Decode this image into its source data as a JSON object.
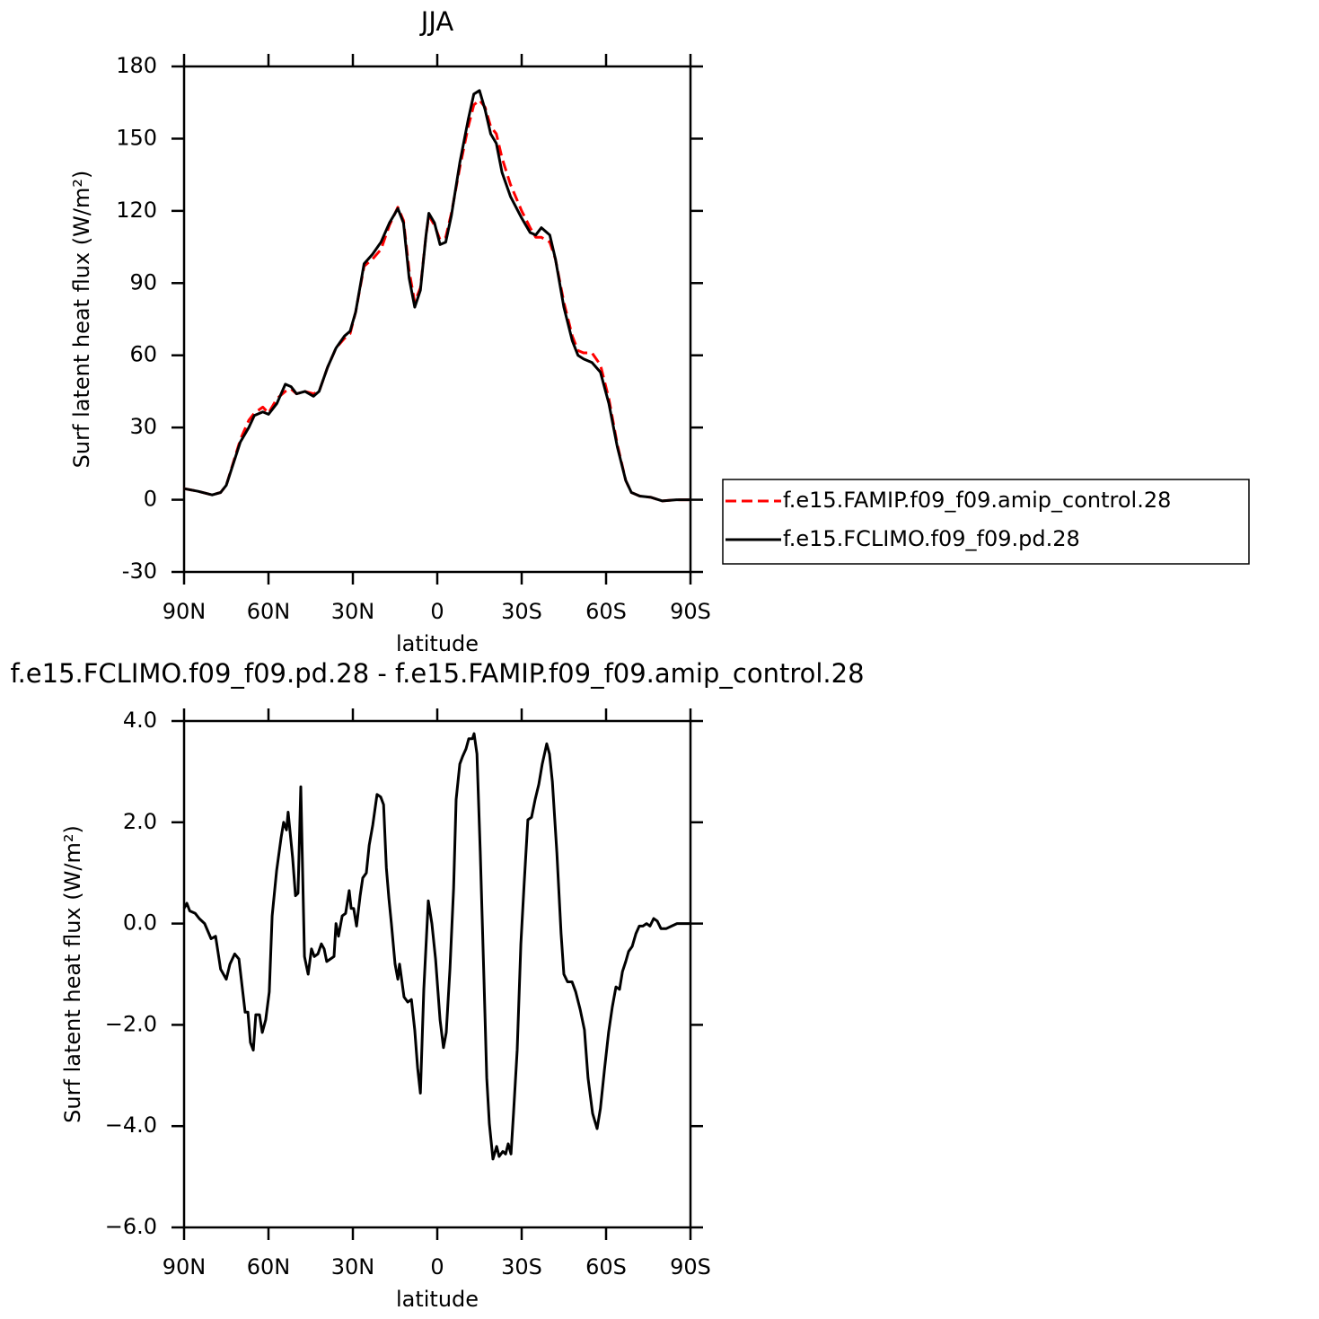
{
  "chart_data": [
    {
      "type": "line",
      "title": "JJA",
      "xlabel": "latitude",
      "ylabel": "Surf latent heat flux (W/m²)",
      "x": [
        90,
        85,
        80,
        77,
        75,
        70,
        67,
        65,
        62,
        60,
        57,
        54,
        52,
        50,
        47,
        44,
        42,
        39,
        36,
        33,
        31,
        29,
        26,
        23,
        20,
        17,
        14,
        12,
        10,
        8,
        6,
        4,
        3,
        1,
        -1,
        -3,
        -5,
        -8,
        -11,
        -13,
        -15,
        -17,
        -19,
        -21,
        -23,
        -26,
        -30,
        -33,
        -35,
        -37,
        -40,
        -42,
        -45,
        -48,
        -50,
        -52,
        -55,
        -58,
        -61,
        -64,
        -67,
        -69,
        -72,
        -76,
        -80,
        -85,
        -90
      ],
      "series": [
        {
          "name": "f.e15.FAMIP.f09_f09.amip_control.28",
          "color": "#ff0000",
          "linestyle": "dashed",
          "values": [
            4.6,
            3.5,
            2,
            3,
            6,
            25,
            33,
            36,
            38.5,
            36,
            42,
            45,
            46,
            44,
            45,
            44,
            45,
            55,
            63,
            67,
            69,
            78,
            97,
            100,
            104,
            114,
            121.5,
            116,
            95,
            82,
            88,
            110,
            118,
            114,
            108,
            109,
            119,
            138,
            155,
            164,
            166,
            163,
            155,
            152,
            142,
            131,
            120,
            113,
            109,
            109,
            107,
            100,
            82,
            68,
            62,
            61,
            61,
            56,
            42,
            23,
            8,
            3,
            1.5,
            1,
            -0.5,
            0,
            0
          ]
        },
        {
          "name": "f.e15.FCLIMO.f09_f09.pd.28",
          "color": "#000000",
          "linestyle": "solid",
          "values": [
            4.6,
            3.5,
            2,
            3,
            6,
            24,
            30,
            35,
            36.5,
            35.5,
            40,
            48,
            47,
            44,
            45,
            43,
            45,
            55,
            63,
            68,
            70,
            78,
            98,
            102,
            107,
            115,
            121,
            115,
            92,
            80,
            87,
            110,
            119,
            115,
            106,
            107,
            118,
            140,
            158,
            168.5,
            170,
            162,
            152,
            148,
            136,
            126,
            117,
            111,
            110,
            113,
            110,
            100,
            80,
            66,
            60,
            58.5,
            57,
            53,
            40,
            22,
            8,
            3,
            1.5,
            1,
            -0.5,
            0,
            0
          ]
        }
      ],
      "xlim": [
        90,
        -90
      ],
      "xticks": [
        {
          "value": 90,
          "label": "90N"
        },
        {
          "value": 60,
          "label": "60N"
        },
        {
          "value": 30,
          "label": "30N"
        },
        0,
        {
          "value": -30,
          "label": "30S"
        },
        {
          "value": -60,
          "label": "60S"
        },
        {
          "value": -90,
          "label": "90S"
        }
      ],
      "ylim": [
        -30,
        180
      ],
      "yticks": [
        -30,
        0,
        30,
        60,
        90,
        120,
        150,
        180
      ],
      "legend": "outside-right"
    },
    {
      "type": "line",
      "title": "f.e15.FCLIMO.f09_f09.pd.28 - f.e15.FAMIP.f09_f09.amip_control.28",
      "xlabel": "latitude",
      "ylabel": "Surf latent heat flux (W/m²)",
      "x": [
        90,
        89,
        88,
        86,
        84.6,
        82.7,
        80.4,
        78.8,
        77,
        75,
        73.7,
        72,
        70.5,
        68.3,
        67.3,
        66.4,
        65.4,
        64.5,
        63.2,
        62.2,
        61,
        59.7,
        58.7,
        57.1,
        55.5,
        54.6,
        53.6,
        53,
        51.4,
        50.4,
        49.5,
        48.5,
        47.2,
        45.9,
        44.7,
        43.7,
        42.4,
        41.2,
        40.2,
        39.3,
        38,
        36.7,
        36,
        35.1,
        33.8,
        32.6,
        31.3,
        30.6,
        29.7,
        28.7,
        27.4,
        26.5,
        25.2,
        24.2,
        22.9,
        21.4,
        20.1,
        19.1,
        18.1,
        17.2,
        16.3,
        15,
        14,
        13.4,
        11.8,
        10.5,
        9.2,
        8,
        7,
        6,
        4.8,
        3.2,
        1.9,
        0.6,
        -1,
        -2.2,
        -3.2,
        -4.5,
        -5.8,
        -6.7,
        -8,
        -9,
        -10.2,
        -11.2,
        -12.5,
        -13.1,
        -14.1,
        -15.3,
        -16.6,
        -17.6,
        -18.5,
        -19.8,
        -21.1,
        -22,
        -23.3,
        -24.3,
        -25.2,
        -26.2,
        -27.1,
        -28.4,
        -29.7,
        -30.9,
        -32.2,
        -33.5,
        -34.8,
        -36.1,
        -37.3,
        -38.9,
        -39.9,
        -40.9,
        -42.5,
        -44,
        -45,
        -46.3,
        -47.9,
        -49.2,
        -50.8,
        -52.3,
        -53.6,
        -55.2,
        -56.8,
        -58,
        -59.4,
        -60.9,
        -62.2,
        -63.5,
        -64.8,
        -65.8,
        -67,
        -68,
        -69.3,
        -70.6,
        -71.8,
        -73.1,
        -74.4,
        -75.6,
        -76.9,
        -78.2,
        -79.5,
        -81.4,
        -83.3,
        -85.2,
        -87.8,
        -90
      ],
      "series": [
        {
          "color": "#000000",
          "linestyle": "solid",
          "values": [
            0.3,
            0.4,
            0.25,
            0.2,
            0.1,
            0,
            -0.3,
            -0.25,
            -0.9,
            -1.1,
            -0.8,
            -0.6,
            -0.7,
            -1.75,
            -1.75,
            -2.35,
            -2.5,
            -1.8,
            -1.8,
            -2.15,
            -1.9,
            -1.35,
            0.15,
            1.05,
            1.7,
            2,
            1.85,
            2.2,
            1.3,
            0.55,
            0.6,
            2.7,
            -0.65,
            -1,
            -0.5,
            -0.65,
            -0.6,
            -0.4,
            -0.5,
            -0.75,
            -0.7,
            -0.65,
            0,
            -0.25,
            0.15,
            0.2,
            0.65,
            0.3,
            0.3,
            -0.05,
            0.55,
            0.9,
            1,
            1.55,
            1.95,
            2.55,
            2.5,
            2.35,
            1.1,
            0.5,
            0,
            -0.8,
            -1.1,
            -0.8,
            -1.45,
            -1.55,
            -1.5,
            -2.1,
            -2.85,
            -3.35,
            -1.3,
            0.45,
            0,
            -0.7,
            -1.9,
            -2.45,
            -2.15,
            -0.9,
            0.7,
            2.45,
            3.15,
            3.3,
            3.45,
            3.65,
            3.65,
            3.75,
            3.35,
            1.4,
            -1.1,
            -3.05,
            -3.95,
            -4.65,
            -4.4,
            -4.6,
            -4.5,
            -4.55,
            -4.35,
            -4.55,
            -3.75,
            -2.5,
            -0.4,
            0.8,
            2.05,
            2.1,
            2.45,
            2.75,
            3.15,
            3.55,
            3.35,
            2.8,
            1.4,
            -0.2,
            -1,
            -1.15,
            -1.15,
            -1.35,
            -1.7,
            -2.1,
            -3.05,
            -3.75,
            -4.05,
            -3.65,
            -2.9,
            -2.15,
            -1.65,
            -1.25,
            -1.3,
            -0.95,
            -0.75,
            -0.55,
            -0.45,
            -0.2,
            -0.05,
            -0.05,
            0,
            -0.05,
            0.1,
            0.05,
            -0.1,
            -0.1,
            -0.05,
            0,
            0,
            0
          ]
        }
      ],
      "xlim": [
        90,
        -90
      ],
      "xticks": [
        {
          "value": 90,
          "label": "90N"
        },
        {
          "value": 60,
          "label": "60N"
        },
        {
          "value": 30,
          "label": "30N"
        },
        0,
        {
          "value": -30,
          "label": "30S"
        },
        {
          "value": -60,
          "label": "60S"
        },
        {
          "value": -90,
          "label": "90S"
        }
      ],
      "ylim": [
        -6,
        4
      ],
      "yticks": [
        {
          "value": -6,
          "label": "−6.0"
        },
        {
          "value": -4,
          "label": "−4.0"
        },
        {
          "value": -2,
          "label": "−2.0"
        },
        {
          "value": 0,
          "label": "0.0"
        },
        {
          "value": 2,
          "label": "2.0"
        },
        {
          "value": 4,
          "label": "4.0"
        }
      ]
    }
  ]
}
